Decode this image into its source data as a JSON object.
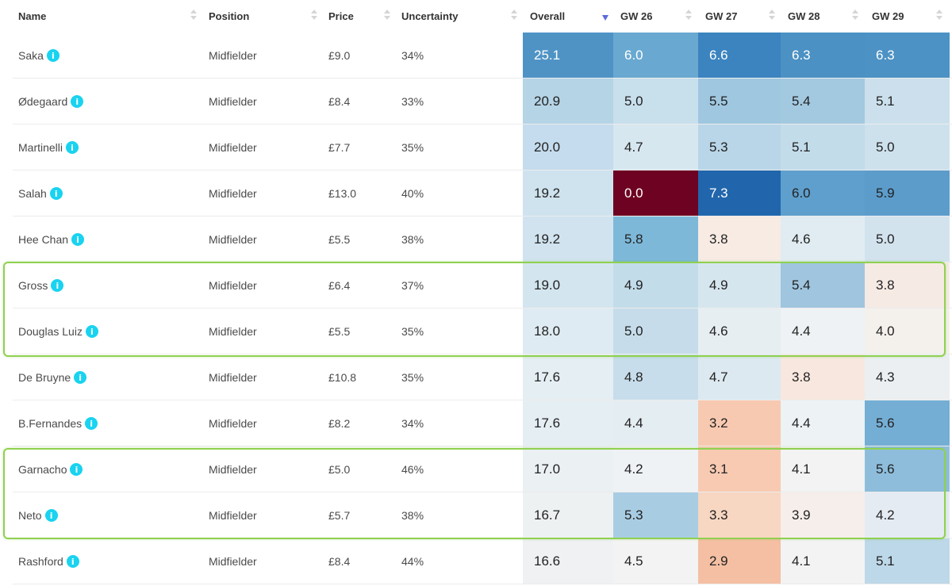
{
  "columns": {
    "name": "Name",
    "position": "Position",
    "price": "Price",
    "uncertainty": "Uncertainty",
    "overall": "Overall",
    "gw26": "GW 26",
    "gw27": "GW 27",
    "gw28": "GW 28",
    "gw29": "GW 29"
  },
  "sort": {
    "column": "Overall",
    "direction": "descending"
  },
  "info_icon": "i",
  "rows": [
    {
      "name": "Saka",
      "position": "Midfielder",
      "price": "£9.0",
      "uncertainty": "34%",
      "overall": "25.1",
      "gw26": "6.0",
      "gw27": "6.6",
      "gw28": "6.3",
      "gw29": "6.3"
    },
    {
      "name": "Ødegaard",
      "position": "Midfielder",
      "price": "£8.4",
      "uncertainty": "33%",
      "overall": "20.9",
      "gw26": "5.0",
      "gw27": "5.5",
      "gw28": "5.4",
      "gw29": "5.1"
    },
    {
      "name": "Martinelli",
      "position": "Midfielder",
      "price": "£7.7",
      "uncertainty": "35%",
      "overall": "20.0",
      "gw26": "4.7",
      "gw27": "5.3",
      "gw28": "5.1",
      "gw29": "5.0"
    },
    {
      "name": "Salah",
      "position": "Midfielder",
      "price": "£13.0",
      "uncertainty": "40%",
      "overall": "19.2",
      "gw26": "0.0",
      "gw27": "7.3",
      "gw28": "6.0",
      "gw29": "5.9"
    },
    {
      "name": "Hee Chan",
      "position": "Midfielder",
      "price": "£5.5",
      "uncertainty": "38%",
      "overall": "19.2",
      "gw26": "5.8",
      "gw27": "3.8",
      "gw28": "4.6",
      "gw29": "5.0"
    },
    {
      "name": "Gross",
      "position": "Midfielder",
      "price": "£6.4",
      "uncertainty": "37%",
      "overall": "19.0",
      "gw26": "4.9",
      "gw27": "4.9",
      "gw28": "5.4",
      "gw29": "3.8"
    },
    {
      "name": "Douglas Luiz",
      "position": "Midfielder",
      "price": "£5.5",
      "uncertainty": "35%",
      "overall": "18.0",
      "gw26": "5.0",
      "gw27": "4.6",
      "gw28": "4.4",
      "gw29": "4.0"
    },
    {
      "name": "De Bruyne",
      "position": "Midfielder",
      "price": "£10.8",
      "uncertainty": "35%",
      "overall": "17.6",
      "gw26": "4.8",
      "gw27": "4.7",
      "gw28": "3.8",
      "gw29": "4.3"
    },
    {
      "name": "B.Fernandes",
      "position": "Midfielder",
      "price": "£8.2",
      "uncertainty": "34%",
      "overall": "17.6",
      "gw26": "4.4",
      "gw27": "3.2",
      "gw28": "4.4",
      "gw29": "5.6"
    },
    {
      "name": "Garnacho",
      "position": "Midfielder",
      "price": "£5.0",
      "uncertainty": "46%",
      "overall": "17.0",
      "gw26": "4.2",
      "gw27": "3.1",
      "gw28": "4.1",
      "gw29": "5.6"
    },
    {
      "name": "Neto",
      "position": "Midfielder",
      "price": "£5.7",
      "uncertainty": "38%",
      "overall": "16.7",
      "gw26": "5.3",
      "gw27": "3.3",
      "gw28": "3.9",
      "gw29": "4.2"
    },
    {
      "name": "Rashford",
      "position": "Midfielder",
      "price": "£8.4",
      "uncertainty": "44%",
      "overall": "16.6",
      "gw26": "4.5",
      "gw27": "2.9",
      "gw28": "4.1",
      "gw29": "5.1"
    }
  ],
  "heat_colors": {
    "overall": [
      "#4f93c5",
      "#b5d4e6",
      "#c4dced",
      "#cfe3ef",
      "#d0e3ef",
      "#d3e5ef",
      "#dfebf2",
      "#e5eef3",
      "#e5eef3",
      "#ebf0f2",
      "#eef1f2",
      "#eff1f2"
    ],
    "gw26": [
      "#69a9d1",
      "#c8dfec",
      "#d7e7f0",
      "#6e0222",
      "#7eb8d9",
      "#c3dcea",
      "#c6dcea",
      "#c7ddeb",
      "#e4edf2",
      "#eff2f4",
      "#a8cde3",
      "#f3f3f3"
    ],
    "gw27": [
      "#3b84c0",
      "#9fc7df",
      "#b9d6e8",
      "#2166ac",
      "#f7ebe4",
      "#d6e6ef",
      "#e7eef2",
      "#dde9f0",
      "#f8c9b1",
      "#f8cab2",
      "#f7d6c2",
      "#f5bfa3"
    ],
    "gw28": [
      "#4b91c3",
      "#a3c9e1",
      "#c3dcea",
      "#5f9fcd",
      "#e1ecf2",
      "#9fc5df",
      "#eef2f4",
      "#f8e7de",
      "#edf2f4",
      "#f3f3f3",
      "#f6eeea",
      "#f3f3f3"
    ],
    "gw29": [
      "#4d92c4",
      "#cbe0ec",
      "#cde1ed",
      "#5c9ccb",
      "#d2e3ee",
      "#f6eae4",
      "#f4f0ec",
      "#ebeff2",
      "#74aed4",
      "#8ebddc",
      "#e4ebf3",
      "#bdd8e8"
    ]
  },
  "text_light_cells": [
    [
      0,
      "overall"
    ],
    [
      0,
      "gw26"
    ],
    [
      0,
      "gw27"
    ],
    [
      0,
      "gw28"
    ],
    [
      0,
      "gw29"
    ],
    [
      3,
      "gw26"
    ],
    [
      3,
      "gw27"
    ]
  ]
}
